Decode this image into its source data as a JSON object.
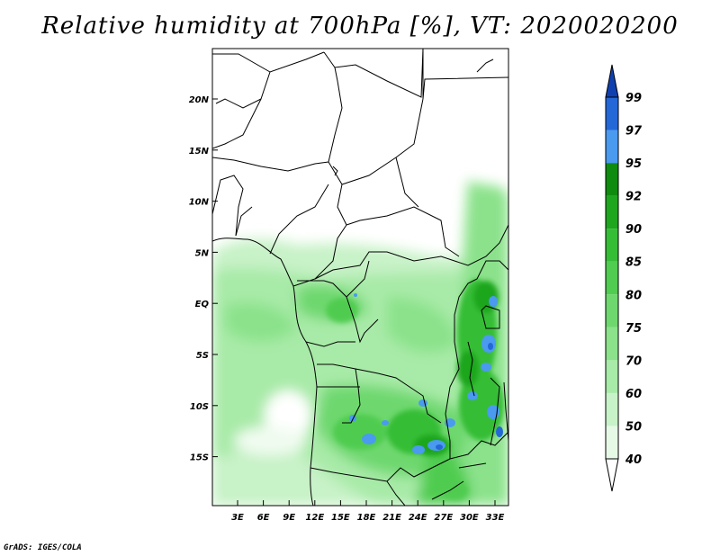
{
  "title": "Relative humidity at 700hPa [%], VT: 2020020200",
  "credit": "GrADS: IGES/COLA",
  "map": {
    "lat_labels": [
      "20N",
      "15N",
      "10N",
      "5N",
      "EQ",
      "5S",
      "10S",
      "15S"
    ],
    "lon_labels": [
      "3E",
      "6E",
      "9E",
      "12E",
      "15E",
      "18E",
      "21E",
      "24E",
      "27E",
      "30E",
      "33E"
    ]
  },
  "colorbar": {
    "levels": [
      "40",
      "50",
      "60",
      "70",
      "75",
      "80",
      "85",
      "90",
      "92",
      "95",
      "97",
      "99"
    ],
    "colors": [
      "#ffffff",
      "#e6f9e6",
      "#c8f2c8",
      "#a8eaa8",
      "#8be28b",
      "#6ed86e",
      "#50cc50",
      "#36bd36",
      "#1fa61f",
      "#0f8c0f",
      "#4a9af0",
      "#2468d8",
      "#1040b0"
    ]
  }
}
